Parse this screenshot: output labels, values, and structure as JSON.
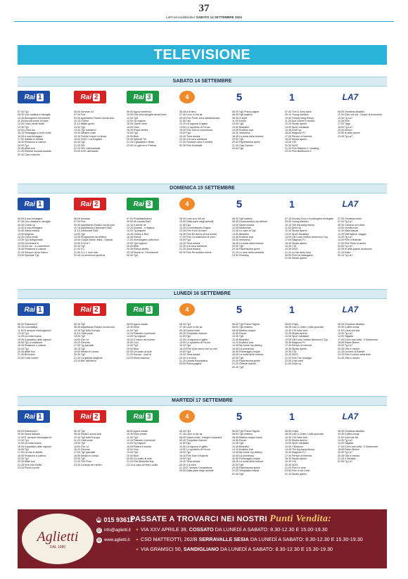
{
  "page": {
    "number": "37",
    "header_pre": "LaProvinciadiBiella.it ",
    "header_date": "SABATO 14 SETTEMBRE 2024",
    "section_title": "TELEVISIONE"
  },
  "channels": {
    "rai1": {
      "name": "Rai",
      "num": "1"
    },
    "rai2": {
      "name": "Rai",
      "num": "2"
    },
    "rai3": {
      "name": "Rai",
      "num": "3"
    },
    "rete4": "4",
    "canale5": "5",
    "italia1": "1",
    "la7": "LA7"
  },
  "days": [
    {
      "title": "SABATO 14 SETTEMBRE",
      "cols": [
        [
          "07.00 Tg1",
          "08.30 Uno mattina in famiglia",
          "10.30 Buongiorno benessere",
          "11.25 Ancora storie di mare",
          "12.30 Linea verde facile",
          "13.30 Tg1",
          "14.00 Linea blu",
          "15.15 Passaggio a nord ovest",
          "16.05 A sua immagine",
          "17.00 Sabato in diretta",
          "18.45 Reazione a catena",
          "20.00 Tg1",
          "20.35 Affari tuoi",
          "21.25 Rimmel musical awards",
          "00.40 Ciao maschio"
        ],
        [
          "06.00 Nonews 24",
          "07.00 Pod",
          "09.00 Appetando Radio2 social club",
          "10.10 Cucine",
          "11.10 Italian green",
          "13.00 Tg2",
          "13.25 Tg2 weekend",
          "14.00 Dinamo rossi",
          "15.40 Finché il sport ivi show",
          "19.00 NCIS: Los Angeles",
          "20.30 Tg2",
          "21.20 FBI",
          "22.10 FBI: International",
          "23.00 SOS dell'adulto"
        ],
        [
          "08.00 Agorà weekend",
          "10.35 Film Una famiglia senza frani",
          "12.00 Tg3",
          "14.00 Tg regione",
          "15.00 Opere verdi",
          "16.00 Gesi",
          "16.30 Prima diretta",
          "19.00 Tg3",
          "20.00 Blob",
          "20.25 Splendi Tre",
          "21.20 Il gladiatore: finale",
          "23.45 Un giorno in Pretura"
        ],
        [
          "06.45 A di teco",
          "07.45 Love in the air",
          "09.45 Film Fiorti: sono abbandonato",
          "11.55 Tg4",
          "12.25 La signora in giallo",
          "14.00 Lo sportello di Forum",
          "15.30 Film Giorno camminare",
          "19.00 Tg4",
          "19.40 Terra amara",
          "20.30 4 di sera weekend",
          "21.25 Freedom oltre il confine",
          "00.35 Film Ducktails"
        ],
        [
          "06.00 Tg5 Prima pagina",
          "08.00 Tg5 mattino",
          "08.45 X-style",
          "11.00 Forum",
          "13.00 Tg5",
          "13.40 Beautiful",
          "14.00 Endless love",
          "16.30 Verissimo",
          "18.45 La ruota della fortuna",
          "20.00 Tg5",
          "20.40 Paperissima sprint",
          "21.20 Ciao Darwin",
          "00.50 Tg5"
        ],
        [
          "07.00 Tom & Jerry tales",
          "09.10 Young sheldon",
          "10.30 Freddy bang theory",
          "11.25 Due uomini e mezzo",
          "12.25 Studio aperto",
          "13.00 Sport mediaset",
          "13.45 Drive up",
          "16.25 Magnum P.I.",
          "17.25 Person of interest",
          "18.20 Studio aperto",
          "19.30 CSI",
          "20.30 NCIS",
          "21.20 Film Mission 2: crossing",
          "23.20 Film Beethoven 2"
        ],
        [
          "08.00 Omnibus dibattito",
          "11.00 Ciao che fra - Scopri di economia",
          "13.30 Tg La7",
          "14.00 Film",
          "17.00 Taga",
          "18.00 Tg La7",
          "20.00 Mezzo",
          "20.35 In altre parole",
          "23.45 Tg La7"
        ]
      ]
    },
    {
      "title": "DOMENICA 15 SETTEMBRE",
      "cols": [
        [
          "06.05 A sua immagine",
          "07.05 Uno mattina in famiglia",
          "09.40 Check up",
          "10.30 A sua immagine",
          "10.55 Santa messa",
          "12.00 Angelus",
          "12.20 Linea verde",
          "13.30 Tg1 telegiornale",
          "14.00 Domenica In",
          "17.15 Da noi... a ruota libera",
          "18.45 Reazione a catena",
          "21.25 Sempre al tuo fianco",
          "23.40 Speciale Tg1"
        ],
        [
          "06.00 Nonews",
          "07.00 Pod",
          "09.00 Aspettando Radio2 social club",
          "10.15 Aspettando Citofonare Rai2",
          "11.10 Citofonare Rai2",
          "13.00 Tg2",
          "14.00 Programma da definire",
          "15.00 Coppa Davis: Italia - Olanda",
          "19.45 S.W.A.T.",
          "20.30 Tg2",
          "21.00 N.I.",
          "21.50 9-1-1: lone star",
          "22.40 La domenica sportiva"
        ],
        [
          "07.00 Protestantesimo",
          "09.00 Mi manda Rai3",
          "10.10 Il anche ne",
          "12.25 Quante - il regione",
          "14.00 Tg regione",
          "16.35 Hobby & Rex",
          "16.45 Rebus",
          "17.20 Kilimangiaro collection",
          "19.00 Tg3 regione",
          "20.00 Blob",
          "20.35 Rebus diretta",
          "23.15 Storia ne. Permanenti",
          "00.00 Tg3"
        ],
        [
          "08.05 Love is in the air",
          "10.05 Della parte degli animali",
          "11.55 Tg4",
          "12.25 Il commissario Sogna",
          "13.45 Film Fumi di mare",
          "16.35 Film Mi ritorno la tua scelta",
          "17.00 Film La maschera di zorro",
          "19.00 Tg4",
          "19.40 Terra amara",
          "20.30 4 di sera weekend",
          "21.25 Zona bianca",
          "00.30 Film Re sudden movie"
        ],
        [
          "06.00 Tg5 mattino",
          "08.45 Documentario da definire",
          "10.00 Santa messa",
          "12.00 Melaverde",
          "13.00 Le case di Tg5",
          "14.00 Beautiful",
          "14.40 Endless love",
          "16.30 Verissimo",
          "18.45 La ruota della fortuna",
          "20.00 Tg5",
          "20.40 Paperissima sprint",
          "21.20 Le rose della vendetta",
          "23.30 Freeskip"
        ],
        [
          "07.15 Scooby-Doo e il poltergeist rinnegato",
          "09.30 Young sheldon",
          "10.10 The big bang theory",
          "11.50 Drive up",
          "12.25 Studio Aperto",
          "13.00 Sport Mediaset",
          "14.00 Citt Louis Vuitton America's Cup",
          "17.00 Magnum P.I.",
          "18.30 Studio aperto",
          "19.30 CSI",
          "20.30 NCIS",
          "21.20 Lo hai detto tutor",
          "00.00 Film La Valsugana",
          "01.50 Studio aperto"
        ],
        [
          "07.00 Omnibus news",
          "07.40 Tg La7",
          "09.40 Camera con vista",
          "10.00 Uomini solo",
          "10.40 Miss Marple",
          "12.30 Dell'Italia in viaggio",
          "13.30 Tg La7",
          "14.00 Film Il federale",
          "17.00 Film Pluto in aerea",
          "20.00 Tg La7",
          "20.35 In altre parole domenica",
          "21.15 Eden",
          "00.10 Tg La7"
        ]
      ]
    },
    {
      "title": "LUNEDÌ 16 SETTEMBRE",
      "cols": [
        [
          "06.00 Rainews24",
          "06.30 Unomattina",
          "11.50 E sempre mezzogiorno!",
          "13.30 Tg1",
          "14.05 La volta buona",
          "15.35 Il paradiso delle signore",
          "16.55 Tg1 a colazione",
          "18.45 Reazione a catena",
          "20.00 Tg1",
          "20.35 Affari tuoi",
          "21.30 Brennero",
          "23.30 Cose nostre"
        ],
        [
          "06.30 Tg2",
          "08.45 Aspettando Radio2 social club",
          "10.10 Tg2 tutto Europa",
          "11.10 I fatti vostri",
          "13.00 Tg2",
          "14.00 Ore 14",
          "15.20 Gemma",
          "17.00 Tg speciale",
          "18.15 Tg2",
          "19.00 Medici in corsia",
          "20.30 Tg2",
          "21.20 La grande stagione",
          "23.10 Bar dell'arrivo"
        ],
        [
          "08.00 Agorà estate",
          "10.30 Elisir",
          "12.00 Tg3",
          "13.15 Passato e presente",
          "14.00 Tg regione",
          "15.10 Il colore del mondo",
          "16.00 Geo",
          "19.00 Tg3",
          "20.00 Blob",
          "20.50 Un posto al sole",
          "21.20 Eccola - nord le",
          "23.20 Mirra mamma"
        ],
        [
          "06.25 Tg4",
          "07.45 Love in the air",
          "09.45 Grand hotel",
          "09.45 Tempesta d'amore",
          "11.55 Tg4",
          "12.25 La signora in giallo",
          "14.00 Lo sportello di Forum",
          "15.30 Tg4",
          "16.25 Film Quei cerco non so che",
          "19.00 Tg4",
          "19.40 Terra amara",
          "20.30 4 di sera",
          "21.25 Quarta Repubblica",
          "00.55 Prima pagina"
        ],
        [
          "06.00 Tg5 Prima Pagina",
          "08.00 Tg5 mattino",
          "08.45 Mattino cinque",
          "10.55 Forum",
          "13.00 Tg5",
          "13.40 Beautiful",
          "14.10 Endless love",
          "14.45 My home my destiny",
          "15.45 La promessa",
          "16.55 Pomeriggio cinque",
          "18.45 La ruota della fortuna",
          "20.00 Tg5",
          "20.40 Paperissima sprint",
          "21.20 Grande fratello",
          "00.40 Tg5"
        ],
        [
          "06.50 Chips",
          "08.35 Law & Order: Unità speciale",
          "10.30 CSI New York",
          "12.25 Studio Aperto",
          "13.00 Sport mediaset",
          "13.50 Citt Louis Vuitton America's Cup",
          "16.35 Magnum P.I.",
          "17.30 Person of interest",
          "18.30 Studio aperto",
          "19.30 CSI",
          "20.30 NCIS",
          "21.20 Film The prodigal",
          "23.05 Cold case",
          "01.00 Drive up"
        ],
        [
          "08.00 Omnibus dibattito",
          "09.40 Coffee break",
          "11.00 L'aria che tira",
          "13.30 Tg La7",
          "14.00 Tagadà",
          "17.00 C'era una volta - Il Novecento",
          "18.55 Padre Brown",
          "20.00 Tg La7",
          "20.35 Otto e mezzo",
          "21.15 La torre di Babele",
          "23.15 Film Il colore della fede",
          "01.45 Otto e mezzo"
        ]
      ]
    },
    {
      "title": "MARTEDÌ 17 SETTEMBRE",
      "cols": [
        [
          "06.00 Rainews24",
          "09.50 Storie italiane",
          "12.00 E' sempre mezzogiorno!",
          "13.30 Tg1",
          "14.05 La volta buona",
          "16.05 Il paradiso delle signore",
          "16.55 Tg1",
          "17.05 La vita in diretta",
          "18.45 Reazione a catena",
          "20.00 Tg1",
          "20.35 Affari tuoi",
          "21.25 Viva mia Sicilia",
          "23.30 Porta a porta"
        ],
        [
          "06.30 Tg2",
          "08.45 Radio2 social club",
          "10.10 Tg2 tutto Europa",
          "11.20 I fatti vostri",
          "13.00 Tg2",
          "14.00 Ore 14",
          "15.20 Gemma",
          "17.00 Tg2 speciale",
          "18.50 Medici in corsia",
          "20.00 Tg2",
          "21.20 The Floor",
          "23.40 La festa del rientro"
        ],
        [
          "08.00 Agorà estate",
          "10.30 Elisir estate",
          "12.00 Tg3",
          "13.15 Passato e presente",
          "14.00 Tg regione",
          "15.05 Rebira il mondo",
          "16.00 Geo",
          "19.00 Tg3",
          "20.00 Blob",
          "20.50 Un posto al sole",
          "21.20 Film Beautiful boy",
          "23.10 A casa di Rete Lucilla"
        ],
        [
          "06.25 Tg4",
          "07.45 Love in the air",
          "08.45 Grand Hotel - intrighi e passioni",
          "09.45 Tempesta d'amore",
          "11.55 Tg4",
          "12.25 La signora in giallo",
          "14.00 Lo sportello di Forum",
          "15.30 Tg4",
          "16.40 Film Sole d'ergento",
          "19.00 Tg4",
          "19.40 Terra amara",
          "20.30 4 di sera",
          "21.25 E' sempre Cartabianca",
          "00.50 Dalla parte degli animali"
        ],
        [
          "06.00 Tg5 Prima Pagina",
          "08.00 Tg5 mattino",
          "08.45 Mattino cinque news",
          "10.55 Forum",
          "13.00 Tg5",
          "13.40 Beautiful",
          "14.10 Endless love",
          "14.45 My home my destiny",
          "15.45 La promessa",
          "16.55 Pomeriggio cinque",
          "18.45 La ruota della fortuna",
          "20.00 Tg5",
          "20.40 Paperissima sprint",
          "21.20 Temptation island",
          "01.05 Tg5"
        ],
        [
          "06.50 Chips",
          "08.35 Law & Order: Unità speciale",
          "10.30 CSI New York",
          "12.25 Studio Aperto",
          "13.00 Sport mediaset",
          "13.50 I Simpson",
          "14.45 The big bang theory",
          "15.40 Magnum P.I.",
          "17.30 Person of interest",
          "18.30 Studio aperto",
          "19.30 CSI",
          "20.30 NCIS",
          "21.20 Film Le Iene",
          "23.50 Film Io tra il due",
          "01.15 Studio aperto"
        ],
        [
          "08.00 Omnibus dibattito",
          "09.40 Coffee break",
          "11.00 Cold che tra",
          "13.30 Tg La7",
          "14.00 Tagadà",
          "17.00 C'era una volta - Il Novecento",
          "18.55 Padre Brown",
          "20.00 Tg La7",
          "20.35 Otto e mezzo",
          "21.15 Il Vandals",
          "01.05 Tg La7"
        ]
      ]
    }
  ],
  "ad": {
    "title_pre": "PASSATE A TROVARCI NEI NOSTRI ",
    "title_em": "Punti Vendita:",
    "brand": "Aglietti",
    "since": "DAL 1980",
    "phone": "015 93612",
    "email": "info@aglietti.it",
    "web": "www.aglietti.it",
    "addresses": [
      {
        "street": "VIA XXV APRILE 39,",
        "town": "COSSATO",
        "hours": "DA LUNEDÌ A SABATO: 8.30-12.30 E 15.00-19.30"
      },
      {
        "street": "CSO MATTEOTTI, 262/B",
        "town": "SERRAVALLE SESIA",
        "hours": "DA LUNEDÌ A SABATO: 8.30-12.30 E 15.30-19.30"
      },
      {
        "street": "VIA GRAMSCI 50,",
        "town": "SANDIGLIANO",
        "hours": "DA LUNEDÌ A SABATO: 8.30-12.30 E 15.30-19.30"
      }
    ]
  }
}
